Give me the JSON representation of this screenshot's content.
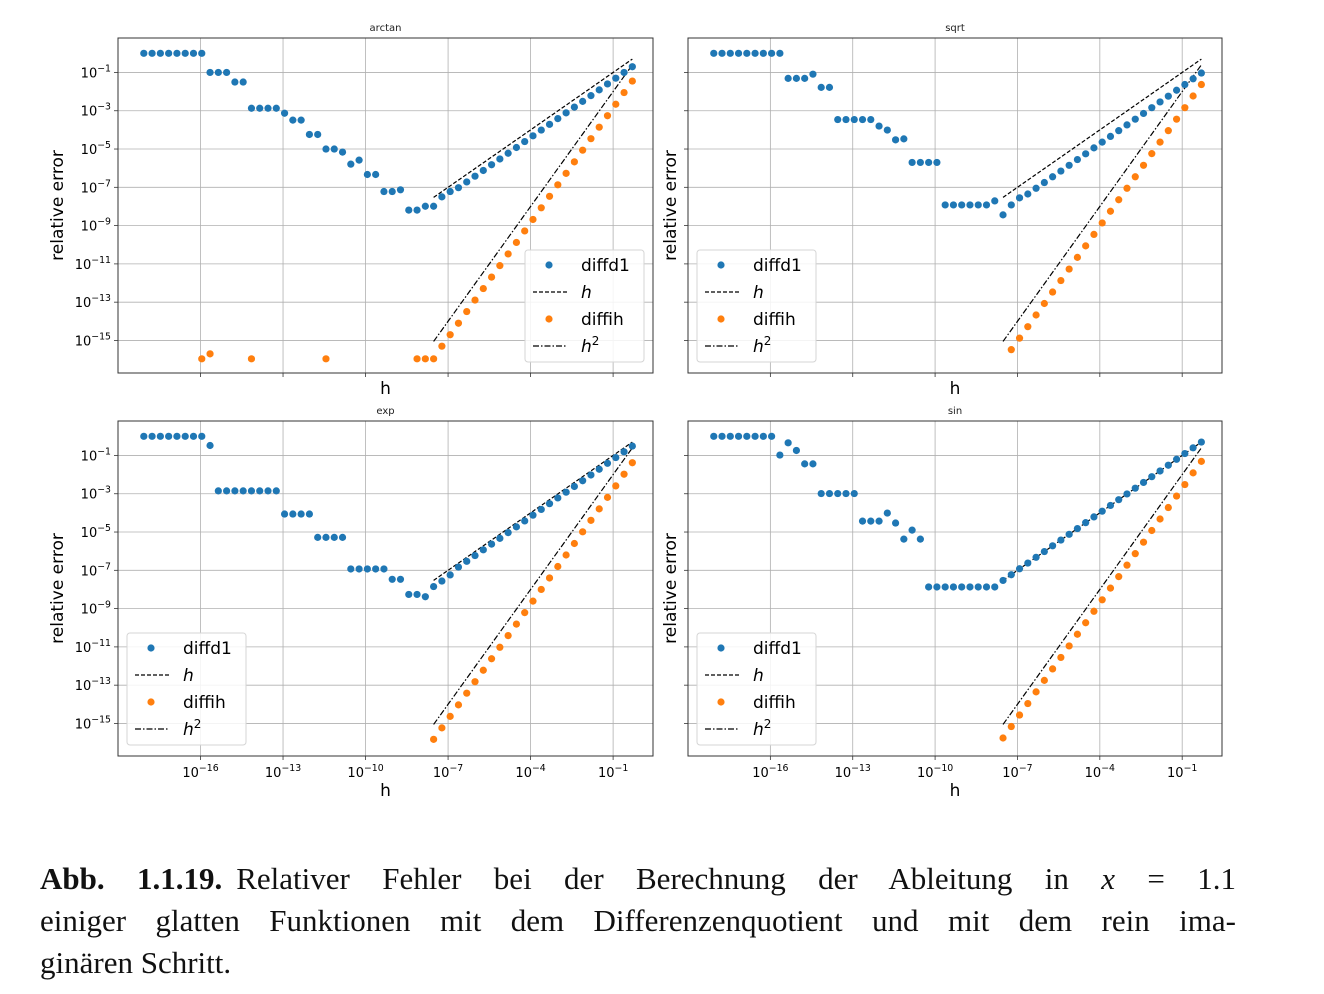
{
  "chart_data": {
    "type": "scatter",
    "layout": "2x2 grid",
    "x_scale": "log",
    "y_scale": "log",
    "h_values_note": "h = 2^k",
    "h_exponent_base2": [
      -60,
      -59,
      -58,
      -57,
      -56,
      -55,
      -54,
      -53,
      -52,
      -51,
      -50,
      -49,
      -48,
      -47,
      -46,
      -45,
      -44,
      -43,
      -42,
      -41,
      -40,
      -39,
      -38,
      -37,
      -36,
      -35,
      -34,
      -33,
      -32,
      -31,
      -30,
      -29,
      -28,
      -27,
      -26,
      -25,
      -24,
      -23,
      -22,
      -21,
      -20,
      -19,
      -18,
      -17,
      -16,
      -15,
      -14,
      -13,
      -12,
      -11,
      -10,
      -9,
      -8,
      -7,
      -6,
      -5,
      -4,
      -3,
      -2,
      -1
    ],
    "xlim_log10": [
      -19.0,
      0.45
    ],
    "ylim_log10": [
      -16.7,
      0.8
    ],
    "x_ticks": [
      {
        "exp": -16,
        "label": "10",
        "sup": "−16"
      },
      {
        "exp": -13,
        "label": "10",
        "sup": "−13"
      },
      {
        "exp": -10,
        "label": "10",
        "sup": "−10"
      },
      {
        "exp": -7,
        "label": "10",
        "sup": "−7"
      },
      {
        "exp": -4,
        "label": "10",
        "sup": "−4"
      },
      {
        "exp": -1,
        "label": "10",
        "sup": "−1"
      }
    ],
    "y_ticks": [
      {
        "exp": -1,
        "label": "10",
        "sup": "−1"
      },
      {
        "exp": -3,
        "label": "10",
        "sup": "−3"
      },
      {
        "exp": -5,
        "label": "10",
        "sup": "−5"
      },
      {
        "exp": -7,
        "label": "10",
        "sup": "−7"
      },
      {
        "exp": -9,
        "label": "10",
        "sup": "−9"
      },
      {
        "exp": -11,
        "label": "10",
        "sup": "−11"
      },
      {
        "exp": -13,
        "label": "10",
        "sup": "−13"
      },
      {
        "exp": -15,
        "label": "10",
        "sup": "−15"
      }
    ],
    "grid": true,
    "colors": {
      "diffd1": "#1f77b4",
      "diffih": "#ff7f0e",
      "reference": "#000000"
    },
    "reference_lines": {
      "h_exponent_base2_range": [
        -25,
        -1
      ],
      "h": {
        "label": "h",
        "power": 1,
        "style": "dashed"
      },
      "h2": {
        "label": "h",
        "sup": "2",
        "power": 2,
        "style": "dashdot"
      }
    },
    "panels": [
      {
        "title": "arctan",
        "xlabel": "h",
        "ylabel": "relative error",
        "show_x_ticklabels": false,
        "show_y_ticklabels": true,
        "legend_position": "lower-right",
        "series": [
          {
            "name": "diffd1",
            "log10_values": [
              0,
              0,
              0,
              0,
              0,
              0,
              0,
              0,
              -1.0,
              -1.0,
              -1.0,
              -1.5,
              -1.5,
              -2.87,
              -2.87,
              -2.87,
              -2.87,
              -3.13,
              -3.49,
              -3.49,
              -4.24,
              -4.24,
              -5.0,
              -5.0,
              -5.16,
              -5.79,
              -5.58,
              -6.33,
              -6.33,
              -7.22,
              -7.22,
              -7.13,
              -8.19,
              -8.19,
              -7.99,
              -7.99,
              -7.5,
              -7.22,
              -7.02,
              -6.72,
              -6.42,
              -6.12,
              -5.82,
              -5.52,
              -5.22,
              -4.92,
              -4.61,
              -4.31,
              -4.01,
              -3.71,
              -3.41,
              -3.11,
              -2.81,
              -2.51,
              -2.21,
              -1.91,
              -1.6,
              -1.3,
              -1.0,
              -0.7
            ]
          },
          {
            "name": "diffih",
            "log10_values": [
              null,
              null,
              null,
              null,
              null,
              null,
              null,
              -15.96,
              -15.7,
              null,
              null,
              null,
              null,
              -15.96,
              null,
              null,
              null,
              null,
              null,
              null,
              null,
              null,
              -15.96,
              null,
              null,
              null,
              null,
              null,
              null,
              null,
              null,
              null,
              null,
              -15.96,
              -15.96,
              -15.96,
              -15.3,
              -14.7,
              -14.1,
              -13.49,
              -12.89,
              -12.29,
              -11.69,
              -11.09,
              -10.48,
              -9.88,
              -9.28,
              -8.68,
              -8.07,
              -7.47,
              -6.87,
              -6.27,
              -5.67,
              -5.06,
              -4.46,
              -3.86,
              -3.26,
              -2.66,
              -2.05,
              -1.45
            ]
          }
        ]
      },
      {
        "title": "sqrt",
        "xlabel": "h",
        "ylabel": "relative error",
        "show_x_ticklabels": false,
        "show_y_ticklabels": false,
        "legend_position": "lower-left",
        "series": [
          {
            "name": "diffd1",
            "log10_values": [
              0,
              0,
              0,
              0,
              0,
              0,
              0,
              0,
              0,
              -1.31,
              -1.31,
              -1.31,
              -1.09,
              -1.78,
              -1.78,
              -3.46,
              -3.46,
              -3.46,
              -3.46,
              -3.46,
              -3.8,
              -4.01,
              -4.52,
              -4.47,
              -5.7,
              -5.7,
              -5.7,
              -5.7,
              -7.92,
              -7.92,
              -7.92,
              -7.92,
              -7.92,
              -7.92,
              -7.71,
              -8.44,
              -7.92,
              -7.55,
              -7.35,
              -7.05,
              -6.75,
              -6.45,
              -6.15,
              -5.85,
              -5.55,
              -5.25,
              -4.94,
              -4.64,
              -4.34,
              -4.04,
              -3.74,
              -3.44,
              -3.14,
              -2.84,
              -2.54,
              -2.24,
              -1.93,
              -1.63,
              -1.33,
              -1.03
            ]
          },
          {
            "name": "diffih",
            "log10_values": [
              null,
              null,
              null,
              null,
              null,
              null,
              null,
              null,
              null,
              null,
              null,
              null,
              null,
              null,
              null,
              null,
              null,
              null,
              null,
              null,
              null,
              null,
              null,
              null,
              null,
              null,
              null,
              null,
              null,
              null,
              null,
              null,
              null,
              null,
              null,
              null,
              -15.48,
              -14.88,
              -14.28,
              -13.67,
              -13.07,
              -12.47,
              -11.87,
              -11.27,
              -10.66,
              -10.06,
              -9.46,
              -8.86,
              -8.25,
              -7.65,
              -7.05,
              -6.45,
              -5.85,
              -5.24,
              -4.64,
              -4.04,
              -3.44,
              -2.84,
              -2.23,
              -1.63
            ]
          }
        ]
      },
      {
        "title": "exp",
        "xlabel": "h",
        "ylabel": "relative error",
        "show_x_ticklabels": true,
        "show_y_ticklabels": true,
        "legend_position": "lower-left",
        "series": [
          {
            "name": "diffd1",
            "log10_values": [
              0,
              0,
              0,
              0,
              0,
              0,
              0,
              0,
              -0.48,
              -2.85,
              -2.85,
              -2.85,
              -2.85,
              -2.85,
              -2.85,
              -2.85,
              -2.85,
              -4.06,
              -4.06,
              -4.06,
              -4.06,
              -5.28,
              -5.28,
              -5.28,
              -5.28,
              -6.93,
              -6.93,
              -6.93,
              -6.93,
              -6.93,
              -7.47,
              -7.47,
              -8.26,
              -8.26,
              -8.38,
              -7.85,
              -7.56,
              -7.24,
              -6.83,
              -6.53,
              -6.23,
              -5.93,
              -5.63,
              -5.33,
              -5.03,
              -4.73,
              -4.42,
              -4.12,
              -3.82,
              -3.52,
              -3.22,
              -2.92,
              -2.62,
              -2.32,
              -2.02,
              -1.72,
              -1.41,
              -1.11,
              -0.81,
              -0.51
            ]
          },
          {
            "name": "diffih",
            "log10_values": [
              null,
              null,
              null,
              null,
              null,
              null,
              null,
              null,
              null,
              null,
              null,
              null,
              null,
              null,
              null,
              null,
              null,
              null,
              null,
              null,
              null,
              null,
              null,
              null,
              null,
              null,
              null,
              null,
              null,
              null,
              null,
              null,
              null,
              null,
              null,
              -15.83,
              -15.23,
              -14.63,
              -14.03,
              -13.42,
              -12.82,
              -12.22,
              -11.62,
              -11.02,
              -10.41,
              -9.81,
              -9.21,
              -8.61,
              -8.0,
              -7.4,
              -6.8,
              -6.2,
              -5.6,
              -4.99,
              -4.39,
              -3.79,
              -3.19,
              -2.59,
              -1.98,
              -1.38
            ]
          }
        ]
      },
      {
        "title": "sin",
        "xlabel": "h",
        "ylabel": "relative error",
        "show_x_ticklabels": true,
        "show_y_ticklabels": false,
        "legend_position": "lower-left",
        "series": [
          {
            "name": "diffd1",
            "log10_values": [
              0,
              0,
              0,
              0,
              0,
              0,
              0,
              0,
              -0.98,
              -0.34,
              -0.74,
              -1.44,
              -1.44,
              -2.99,
              -2.99,
              -2.99,
              -2.99,
              -2.99,
              -4.43,
              -4.43,
              -4.43,
              -4.01,
              -4.53,
              -5.37,
              -4.9,
              -5.37,
              -7.87,
              -7.87,
              -7.87,
              -7.87,
              -7.87,
              -7.87,
              -7.87,
              -7.87,
              -7.87,
              -7.53,
              -7.23,
              -6.92,
              -6.62,
              -6.32,
              -6.02,
              -5.72,
              -5.42,
              -5.12,
              -4.82,
              -4.51,
              -4.21,
              -3.91,
              -3.61,
              -3.31,
              -3.01,
              -2.71,
              -2.41,
              -2.11,
              -1.81,
              -1.51,
              -1.2,
              -0.9,
              -0.6,
              -0.3
            ]
          },
          {
            "name": "diffih",
            "log10_values": [
              null,
              null,
              null,
              null,
              null,
              null,
              null,
              null,
              null,
              null,
              null,
              null,
              null,
              null,
              null,
              null,
              null,
              null,
              null,
              null,
              null,
              null,
              null,
              null,
              null,
              null,
              null,
              null,
              null,
              null,
              null,
              null,
              null,
              null,
              null,
              -15.76,
              -15.16,
              -14.56,
              -13.96,
              -13.35,
              -12.75,
              -12.15,
              -11.55,
              -10.95,
              -10.34,
              -9.74,
              -9.14,
              -8.54,
              -7.93,
              -7.33,
              -6.73,
              -6.13,
              -5.53,
              -4.92,
              -4.32,
              -3.72,
              -3.12,
              -2.52,
              -1.91,
              -1.31
            ]
          }
        ]
      }
    ]
  },
  "caption": {
    "label": "Abb.   1.1.19.",
    "line1_a": "Relativer Fehler bei der Berechnung der Ableitung in ",
    "math_var": "x",
    "line1_b": " = 1.1",
    "line2": "einiger glatten Funktionen mit dem Differenzenquotient und mit dem rein ima-",
    "line3": "ginären Schritt."
  }
}
